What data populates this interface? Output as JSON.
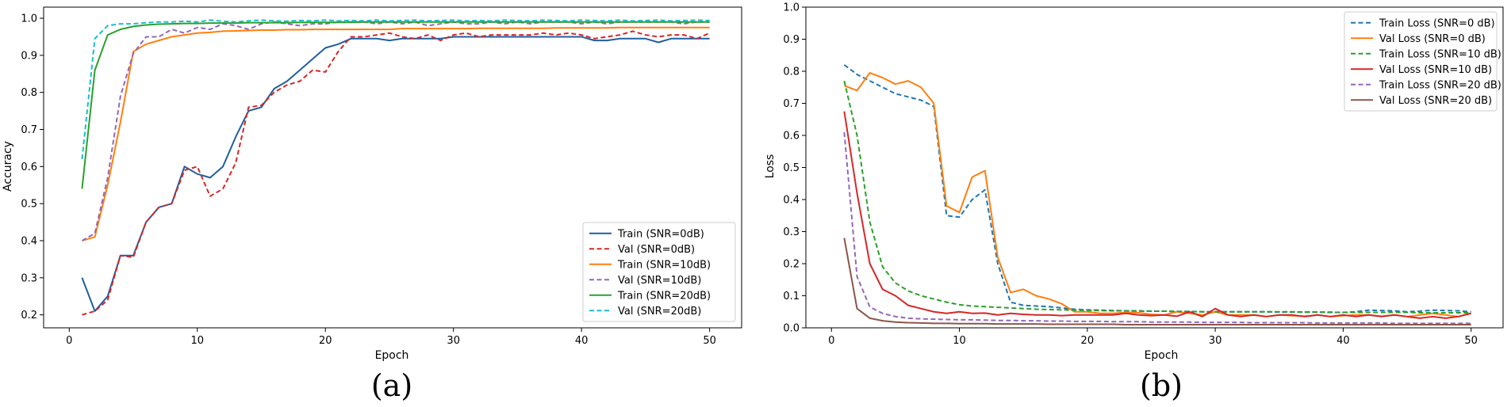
{
  "chart_data": [
    {
      "type": "line",
      "caption": "(a)",
      "xlabel": "Epoch",
      "ylabel": "Accuracy",
      "xlim": [
        -2,
        52.5
      ],
      "ylim": [
        0.165,
        1.03
      ],
      "xticks": [
        0,
        10,
        20,
        30,
        40,
        50
      ],
      "yticks": [
        0.2,
        0.3,
        0.4,
        0.5,
        0.6,
        0.7,
        0.8,
        0.9,
        1.0
      ],
      "ytick_labels": [
        "0.2",
        "0.3",
        "0.4",
        "0.5",
        "0.6",
        "0.7",
        "0.8",
        "0.9",
        "1.0"
      ],
      "legend": "lower-right",
      "x": [
        1,
        2,
        3,
        4,
        5,
        6,
        7,
        8,
        9,
        10,
        11,
        12,
        13,
        14,
        15,
        16,
        17,
        18,
        19,
        20,
        21,
        22,
        23,
        24,
        25,
        26,
        27,
        28,
        29,
        30,
        31,
        32,
        33,
        34,
        35,
        36,
        37,
        38,
        39,
        40,
        41,
        42,
        43,
        44,
        45,
        46,
        47,
        48,
        49,
        50
      ],
      "series": [
        {
          "name": "Train (SNR=0dB)",
          "color": "#1f5f9f",
          "dash": false,
          "values": [
            0.3,
            0.21,
            0.25,
            0.36,
            0.36,
            0.45,
            0.49,
            0.5,
            0.6,
            0.58,
            0.57,
            0.6,
            0.68,
            0.75,
            0.76,
            0.81,
            0.83,
            0.86,
            0.89,
            0.92,
            0.93,
            0.945,
            0.945,
            0.945,
            0.94,
            0.945,
            0.945,
            0.945,
            0.945,
            0.95,
            0.95,
            0.95,
            0.95,
            0.95,
            0.95,
            0.95,
            0.95,
            0.95,
            0.95,
            0.95,
            0.94,
            0.94,
            0.945,
            0.945,
            0.945,
            0.935,
            0.945,
            0.945,
            0.945,
            0.945
          ]
        },
        {
          "name": "Val (SNR=0dB)",
          "color": "#d62728",
          "dash": true,
          "values": [
            0.2,
            0.21,
            0.24,
            0.36,
            0.355,
            0.45,
            0.49,
            0.5,
            0.59,
            0.6,
            0.52,
            0.54,
            0.61,
            0.76,
            0.765,
            0.8,
            0.82,
            0.83,
            0.86,
            0.855,
            0.91,
            0.95,
            0.95,
            0.955,
            0.96,
            0.95,
            0.945,
            0.955,
            0.94,
            0.955,
            0.96,
            0.95,
            0.955,
            0.955,
            0.955,
            0.955,
            0.96,
            0.955,
            0.96,
            0.955,
            0.945,
            0.95,
            0.955,
            0.965,
            0.955,
            0.95,
            0.955,
            0.955,
            0.945,
            0.96
          ]
        },
        {
          "name": "Train (SNR=10dB)",
          "color": "#ff7f0e",
          "dash": false,
          "values": [
            0.4,
            0.41,
            0.55,
            0.72,
            0.91,
            0.93,
            0.94,
            0.95,
            0.955,
            0.96,
            0.962,
            0.965,
            0.966,
            0.967,
            0.968,
            0.968,
            0.969,
            0.969,
            0.97,
            0.97,
            0.97,
            0.97,
            0.97,
            0.97,
            0.97,
            0.972,
            0.972,
            0.972,
            0.972,
            0.972,
            0.972,
            0.973,
            0.973,
            0.973,
            0.973,
            0.973,
            0.973,
            0.974,
            0.974,
            0.974,
            0.974,
            0.974,
            0.975,
            0.975,
            0.975,
            0.975,
            0.975,
            0.975,
            0.975,
            0.975
          ]
        },
        {
          "name": "Val (SNR=10dB)",
          "color": "#9467bd",
          "dash": true,
          "values": [
            0.4,
            0.42,
            0.57,
            0.79,
            0.905,
            0.95,
            0.95,
            0.97,
            0.96,
            0.975,
            0.97,
            0.985,
            0.98,
            0.97,
            0.985,
            0.99,
            0.985,
            0.98,
            0.985,
            0.985,
            0.99,
            0.99,
            0.99,
            0.985,
            0.99,
            0.985,
            0.99,
            0.98,
            0.985,
            0.99,
            0.985,
            0.985,
            0.99,
            0.985,
            0.99,
            0.985,
            0.99,
            0.99,
            0.99,
            0.985,
            0.99,
            0.985,
            0.99,
            0.99,
            0.99,
            0.99,
            0.99,
            0.985,
            0.99,
            0.99
          ]
        },
        {
          "name": "Train (SNR=20dB)",
          "color": "#2ca02c",
          "dash": false,
          "values": [
            0.54,
            0.86,
            0.955,
            0.97,
            0.978,
            0.982,
            0.984,
            0.985,
            0.986,
            0.986,
            0.987,
            0.987,
            0.987,
            0.988,
            0.988,
            0.988,
            0.988,
            0.989,
            0.989,
            0.989,
            0.989,
            0.989,
            0.99,
            0.99,
            0.99,
            0.99,
            0.99,
            0.99,
            0.99,
            0.99,
            0.99,
            0.99,
            0.99,
            0.99,
            0.99,
            0.99,
            0.99,
            0.99,
            0.99,
            0.99,
            0.99,
            0.99,
            0.99,
            0.99,
            0.99,
            0.99,
            0.99,
            0.99,
            0.99,
            0.99
          ]
        },
        {
          "name": "Val (SNR=20dB)",
          "color": "#17becf",
          "dash": true,
          "values": [
            0.62,
            0.945,
            0.98,
            0.985,
            0.985,
            0.988,
            0.99,
            0.99,
            0.992,
            0.99,
            0.995,
            0.992,
            0.99,
            0.993,
            0.995,
            0.993,
            0.992,
            0.994,
            0.993,
            0.995,
            0.993,
            0.994,
            0.993,
            0.995,
            0.993,
            0.994,
            0.995,
            0.993,
            0.994,
            0.995,
            0.993,
            0.994,
            0.993,
            0.995,
            0.994,
            0.993,
            0.995,
            0.994,
            0.993,
            0.995,
            0.994,
            0.993,
            0.995,
            0.993,
            0.994,
            0.995,
            0.993,
            0.994,
            0.995,
            0.994
          ]
        }
      ]
    },
    {
      "type": "line",
      "caption": "(b)",
      "xlabel": "Epoch",
      "ylabel": "Loss",
      "xlim": [
        -2,
        52.5
      ],
      "ylim": [
        0.0,
        1.0
      ],
      "xticks": [
        0,
        10,
        20,
        30,
        40,
        50
      ],
      "yticks": [
        0.0,
        0.1,
        0.2,
        0.3,
        0.4,
        0.5,
        0.6,
        0.7,
        0.8,
        0.9,
        1.0
      ],
      "ytick_labels": [
        "0.0",
        "0.1",
        "0.2",
        "0.3",
        "0.4",
        "0.5",
        "0.6",
        "0.7",
        "0.8",
        "0.9",
        "1.0"
      ],
      "legend": "upper-right",
      "x": [
        1,
        2,
        3,
        4,
        5,
        6,
        7,
        8,
        9,
        10,
        11,
        12,
        13,
        14,
        15,
        16,
        17,
        18,
        19,
        20,
        21,
        22,
        23,
        24,
        25,
        26,
        27,
        28,
        29,
        30,
        31,
        32,
        33,
        34,
        35,
        36,
        37,
        38,
        39,
        40,
        41,
        42,
        43,
        44,
        45,
        46,
        47,
        48,
        49,
        50
      ],
      "series": [
        {
          "name": "Train Loss (SNR=0 dB)",
          "color": "#1f77b4",
          "dash": true,
          "values": [
            0.82,
            0.79,
            0.77,
            0.75,
            0.73,
            0.72,
            0.71,
            0.69,
            0.35,
            0.345,
            0.4,
            0.43,
            0.2,
            0.08,
            0.07,
            0.068,
            0.066,
            0.062,
            0.058,
            0.056,
            0.055,
            0.054,
            0.053,
            0.053,
            0.052,
            0.052,
            0.051,
            0.051,
            0.05,
            0.05,
            0.05,
            0.05,
            0.05,
            0.05,
            0.049,
            0.049,
            0.049,
            0.049,
            0.048,
            0.048,
            0.05,
            0.055,
            0.054,
            0.053,
            0.05,
            0.052,
            0.055,
            0.054,
            0.053,
            0.05
          ]
        },
        {
          "name": "Val Loss (SNR=0 dB)",
          "color": "#ff7f0e",
          "dash": false,
          "values": [
            0.755,
            0.74,
            0.795,
            0.78,
            0.76,
            0.77,
            0.75,
            0.7,
            0.38,
            0.36,
            0.47,
            0.49,
            0.22,
            0.11,
            0.12,
            0.1,
            0.09,
            0.075,
            0.05,
            0.05,
            0.045,
            0.045,
            0.048,
            0.047,
            0.042,
            0.04,
            0.05,
            0.045,
            0.04,
            0.05,
            0.04,
            0.04,
            0.04,
            0.035,
            0.04,
            0.038,
            0.036,
            0.04,
            0.035,
            0.038,
            0.04,
            0.04,
            0.036,
            0.04,
            0.035,
            0.04,
            0.045,
            0.04,
            0.035,
            0.045
          ]
        },
        {
          "name": "Train Loss (SNR=10 dB)",
          "color": "#2ca02c",
          "dash": true,
          "values": [
            0.77,
            0.6,
            0.33,
            0.19,
            0.14,
            0.115,
            0.1,
            0.09,
            0.08,
            0.072,
            0.068,
            0.066,
            0.064,
            0.062,
            0.06,
            0.058,
            0.057,
            0.056,
            0.055,
            0.054,
            0.054,
            0.053,
            0.053,
            0.052,
            0.052,
            0.052,
            0.051,
            0.051,
            0.05,
            0.05,
            0.05,
            0.05,
            0.05,
            0.05,
            0.05,
            0.05,
            0.049,
            0.049,
            0.049,
            0.048,
            0.048,
            0.048,
            0.048,
            0.048,
            0.048,
            0.047,
            0.047,
            0.047,
            0.047,
            0.047
          ]
        },
        {
          "name": "Val Loss (SNR=10 dB)",
          "color": "#d62728",
          "dash": false,
          "values": [
            0.675,
            0.42,
            0.2,
            0.12,
            0.1,
            0.07,
            0.06,
            0.05,
            0.045,
            0.05,
            0.045,
            0.046,
            0.04,
            0.045,
            0.042,
            0.04,
            0.04,
            0.038,
            0.04,
            0.04,
            0.04,
            0.04,
            0.045,
            0.04,
            0.038,
            0.04,
            0.036,
            0.05,
            0.035,
            0.06,
            0.04,
            0.035,
            0.04,
            0.035,
            0.04,
            0.04,
            0.035,
            0.04,
            0.035,
            0.04,
            0.035,
            0.04,
            0.035,
            0.04,
            0.035,
            0.03,
            0.035,
            0.03,
            0.035,
            0.045
          ]
        },
        {
          "name": "Train Loss (SNR=20 dB)",
          "color": "#9467bd",
          "dash": true,
          "values": [
            0.61,
            0.16,
            0.065,
            0.045,
            0.035,
            0.03,
            0.028,
            0.027,
            0.026,
            0.025,
            0.025,
            0.024,
            0.023,
            0.023,
            0.022,
            0.022,
            0.021,
            0.021,
            0.02,
            0.02,
            0.02,
            0.019,
            0.019,
            0.019,
            0.018,
            0.018,
            0.018,
            0.018,
            0.017,
            0.017,
            0.017,
            0.017,
            0.016,
            0.016,
            0.016,
            0.016,
            0.016,
            0.015,
            0.015,
            0.015,
            0.015,
            0.015,
            0.015,
            0.014,
            0.014,
            0.014,
            0.014,
            0.014,
            0.014,
            0.014
          ]
        },
        {
          "name": "Val Loss (SNR=20 dB)",
          "color": "#8c564b",
          "dash": false,
          "values": [
            0.28,
            0.06,
            0.03,
            0.022,
            0.018,
            0.016,
            0.015,
            0.014,
            0.014,
            0.013,
            0.013,
            0.013,
            0.012,
            0.012,
            0.012,
            0.012,
            0.011,
            0.011,
            0.011,
            0.011,
            0.011,
            0.011,
            0.01,
            0.01,
            0.01,
            0.01,
            0.01,
            0.01,
            0.01,
            0.01,
            0.01,
            0.01,
            0.01,
            0.01,
            0.01,
            0.01,
            0.01,
            0.01,
            0.01,
            0.01,
            0.01,
            0.01,
            0.01,
            0.01,
            0.01,
            0.01,
            0.01,
            0.01,
            0.01,
            0.01
          ]
        }
      ]
    }
  ]
}
